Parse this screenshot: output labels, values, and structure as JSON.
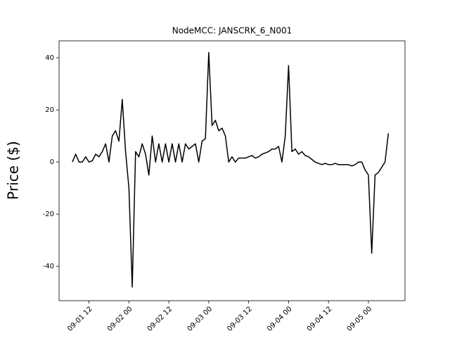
{
  "chart_data": {
    "type": "line",
    "title": "NodeMCC: JANSCRK_6_N001",
    "y_label": "Price ($)",
    "x": [
      "09-01 07",
      "09-01 08",
      "09-01 09",
      "09-01 10",
      "09-01 11",
      "09-01 12",
      "09-01 13",
      "09-01 14",
      "09-01 15",
      "09-01 16",
      "09-01 17",
      "09-01 18",
      "09-01 19",
      "09-01 20",
      "09-01 21",
      "09-01 22",
      "09-01 23",
      "09-02 00",
      "09-02 01",
      "09-02 02",
      "09-02 03",
      "09-02 04",
      "09-02 05",
      "09-02 06",
      "09-02 07",
      "09-02 08",
      "09-02 09",
      "09-02 10",
      "09-02 11",
      "09-02 12",
      "09-02 13",
      "09-02 14",
      "09-02 15",
      "09-02 16",
      "09-02 17",
      "09-02 18",
      "09-02 19",
      "09-02 20",
      "09-02 21",
      "09-02 22",
      "09-02 23",
      "09-03 00",
      "09-03 01",
      "09-03 02",
      "09-03 03",
      "09-03 04",
      "09-03 05",
      "09-03 06",
      "09-03 07",
      "09-03 08",
      "09-03 09",
      "09-03 10",
      "09-03 11",
      "09-03 12",
      "09-03 13",
      "09-03 14",
      "09-03 15",
      "09-03 16",
      "09-03 17",
      "09-03 18",
      "09-03 19",
      "09-03 20",
      "09-03 21",
      "09-03 22",
      "09-03 23",
      "09-04 00",
      "09-04 01",
      "09-04 02",
      "09-04 03",
      "09-04 04",
      "09-04 05",
      "09-04 06",
      "09-04 07",
      "09-04 08",
      "09-04 09",
      "09-04 10",
      "09-04 11",
      "09-04 12",
      "09-04 13",
      "09-04 14",
      "09-04 15",
      "09-04 16",
      "09-04 17",
      "09-04 18",
      "09-04 19",
      "09-04 20",
      "09-04 21",
      "09-04 22",
      "09-04 23",
      "09-05 00",
      "09-05 01",
      "09-05 02",
      "09-05 03",
      "09-05 04",
      "09-05 05",
      "09-05 06"
    ],
    "values": [
      0,
      3,
      0,
      0,
      2,
      0,
      0.5,
      3,
      2,
      4,
      7,
      0,
      10,
      12,
      8,
      24,
      4,
      -10,
      -48,
      4,
      2,
      7,
      3,
      -5,
      10,
      0,
      7,
      0,
      7,
      0,
      7,
      0,
      7,
      0,
      7,
      5,
      6,
      7,
      0,
      8,
      9,
      42,
      14,
      16,
      12,
      13,
      10,
      0,
      2,
      0,
      1.5,
      1.5,
      1.5,
      2,
      2.5,
      1.5,
      2,
      3,
      3.5,
      4,
      5,
      5,
      6,
      0,
      10,
      37,
      4,
      5,
      3,
      4,
      2.5,
      2,
      1,
      0,
      -0.5,
      -1,
      -0.5,
      -1,
      -1,
      -0.5,
      -1,
      -1,
      -1,
      -1,
      -1.5,
      -1,
      0,
      0,
      -3,
      -5,
      -35,
      -5,
      -4,
      -2,
      0,
      11
    ],
    "color": "#000000",
    "xlim": [
      "09-01 03",
      "09-05 11"
    ],
    "xticks": [
      "09-01 12",
      "09-02 00",
      "09-02 12",
      "09-03 00",
      "09-03 12",
      "09-04 00",
      "09-04 12",
      "09-05 00"
    ],
    "ylim": [
      -53.2,
      46.5
    ],
    "yticks": [
      -40,
      -20,
      0,
      20,
      40
    ]
  }
}
